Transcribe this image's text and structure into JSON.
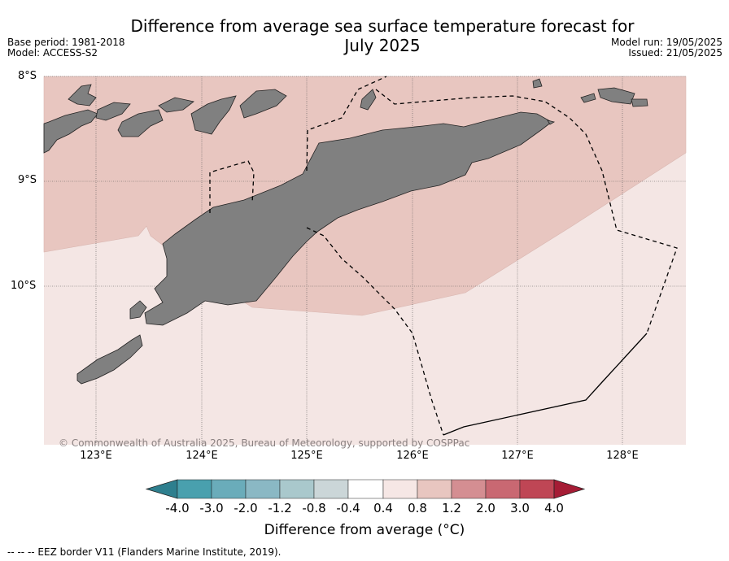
{
  "header": {
    "title_line1": "Difference from average sea surface temperature forecast for",
    "title_line2": "July 2025",
    "base_period": "Base period: 1981-2018",
    "model": "Model: ACCESS-S2",
    "model_run": "Model run: 19/05/2025",
    "issued": "Issued: 21/05/2025"
  },
  "map": {
    "lat_labels": [
      "8°S",
      "9°S",
      "10°S"
    ],
    "lon_labels": [
      "123°E",
      "124°E",
      "125°E",
      "126°E",
      "127°E",
      "128°E"
    ],
    "copyright": "© Commonwealth of Australia 2025, Bureau of Meteorology, supported by COSPPac",
    "colors": {
      "land": "#808080",
      "anomaly_0_4_to_0_8": "#f4e6e4",
      "anomaly_0_8_to_1_2": "#e8c6c0"
    }
  },
  "colorbar": {
    "labels": [
      "-4.0",
      "-3.0",
      "-2.0",
      "-1.2",
      "-0.8",
      "-0.4",
      "0.4",
      "0.8",
      "1.2",
      "2.0",
      "3.0",
      "4.0"
    ],
    "colors": [
      "#2e7f8e",
      "#49a0ae",
      "#6aacba",
      "#8ab8c4",
      "#a9c8cc",
      "#cbd6d8",
      "#ffffff",
      "#f6e7e5",
      "#e8c6c0",
      "#d48e92",
      "#c96872",
      "#bf4655",
      "#a51c35"
    ],
    "title": "Difference from average (°C)"
  },
  "legend": {
    "eez_note": "--  --  -- EEZ border V11 (Flanders Marine Institute, 2019)."
  }
}
